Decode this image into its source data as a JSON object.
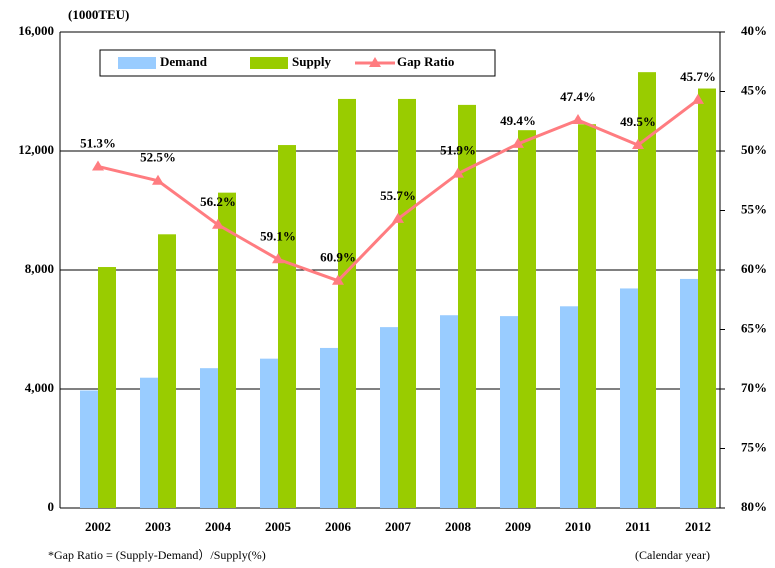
{
  "chart_data": {
    "type": "bar",
    "unit_label": "(1000TEU)",
    "footnote": "*Gap Ratio = (Supply-Demand）/Supply(%)",
    "x_label": "(Calendar year)",
    "categories": [
      "2002",
      "2003",
      "2004",
      "2005",
      "2006",
      "2007",
      "2008",
      "2009",
      "2010",
      "2011",
      "2012"
    ],
    "series": [
      {
        "name": "Demand",
        "color": "#99ccff",
        "type": "bar",
        "values": [
          3950,
          4380,
          4700,
          5020,
          5380,
          6080,
          6480,
          6450,
          6780,
          7380,
          7700
        ]
      },
      {
        "name": "Supply",
        "color": "#99cc00",
        "type": "bar",
        "values": [
          8100,
          9200,
          10600,
          12200,
          13750,
          13750,
          13550,
          12700,
          12900,
          14650,
          14100
        ]
      },
      {
        "name": "Gap Ratio",
        "color": "#ff7c80",
        "type": "line",
        "axis": "y2",
        "values": [
          51.3,
          52.5,
          56.2,
          59.1,
          60.9,
          55.7,
          51.9,
          49.4,
          47.4,
          49.5,
          45.7
        ],
        "value_labels": [
          "51.3%",
          "52.5%",
          "56.2%",
          "59.1%",
          "60.9%",
          "55.7%",
          "51.9%",
          "49.4%",
          "47.4%",
          "49.5%",
          "45.7%"
        ]
      }
    ],
    "ylim": [
      0,
      16000
    ],
    "yticks": [
      0,
      {
        "value": 4000,
        "label": "4,000"
      },
      {
        "value": 8000,
        "label": "8,000"
      },
      {
        "value": 12000,
        "label": "12,000"
      },
      {
        "value": 16000,
        "label": "16,000"
      }
    ],
    "y2lim": [
      80,
      40
    ],
    "y2ticks": [
      {
        "value": 80,
        "label": "80%"
      },
      {
        "value": 75,
        "label": "75%"
      },
      {
        "value": 70,
        "label": "70%"
      },
      {
        "value": 65,
        "label": "65%"
      },
      {
        "value": 60,
        "label": "60%"
      },
      {
        "value": 55,
        "label": "55%"
      },
      {
        "value": 50,
        "label": "50%"
      },
      {
        "value": 45,
        "label": "45%"
      },
      {
        "value": 40,
        "label": "40%"
      }
    ],
    "grid": true
  }
}
